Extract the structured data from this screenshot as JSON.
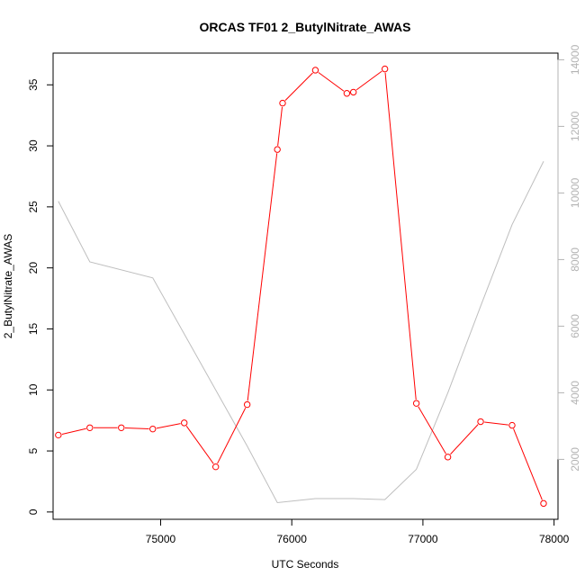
{
  "chart_data": {
    "type": "line",
    "title": "ORCAS TF01 2_ButylNitrate_AWAS",
    "xlabel": "UTC Seconds",
    "ylabel": "2_ButylNitrate_AWAS",
    "xlim": [
      74180,
      78030
    ],
    "ylim": [
      -0.6,
      37.6
    ],
    "y2lim": [
      200,
      14200
    ],
    "x_ticks": [
      75000,
      76000,
      77000,
      78000
    ],
    "y_ticks": [
      0,
      5,
      10,
      15,
      20,
      25,
      30,
      35
    ],
    "y2_ticks": [
      2000,
      4000,
      6000,
      8000,
      10000,
      12000,
      14000
    ],
    "grid": false,
    "legend": "none",
    "series": [
      {
        "axis": "left",
        "color": "#ff0000",
        "marker": "open-circle",
        "x": [
          74220,
          74460,
          74700,
          74940,
          75180,
          75420,
          75660,
          75890,
          75930,
          76180,
          76420,
          76470,
          76710,
          76950,
          77190,
          77440,
          77680,
          77920
        ],
        "y": [
          6.3,
          6.9,
          6.9,
          6.8,
          7.3,
          3.7,
          8.8,
          29.7,
          33.5,
          36.2,
          34.3,
          34.4,
          36.3,
          8.9,
          4.5,
          7.4,
          7.1,
          0.7
        ]
      },
      {
        "axis": "right",
        "color": "#bebebe",
        "marker": "none",
        "x": [
          74220,
          74460,
          74940,
          75660,
          75890,
          76180,
          76470,
          76710,
          76950,
          77190,
          77440,
          77680,
          77920
        ],
        "y": [
          9750,
          7930,
          7450,
          2400,
          700,
          820,
          820,
          790,
          1700,
          4000,
          6600,
          9050,
          10950
        ]
      }
    ]
  }
}
